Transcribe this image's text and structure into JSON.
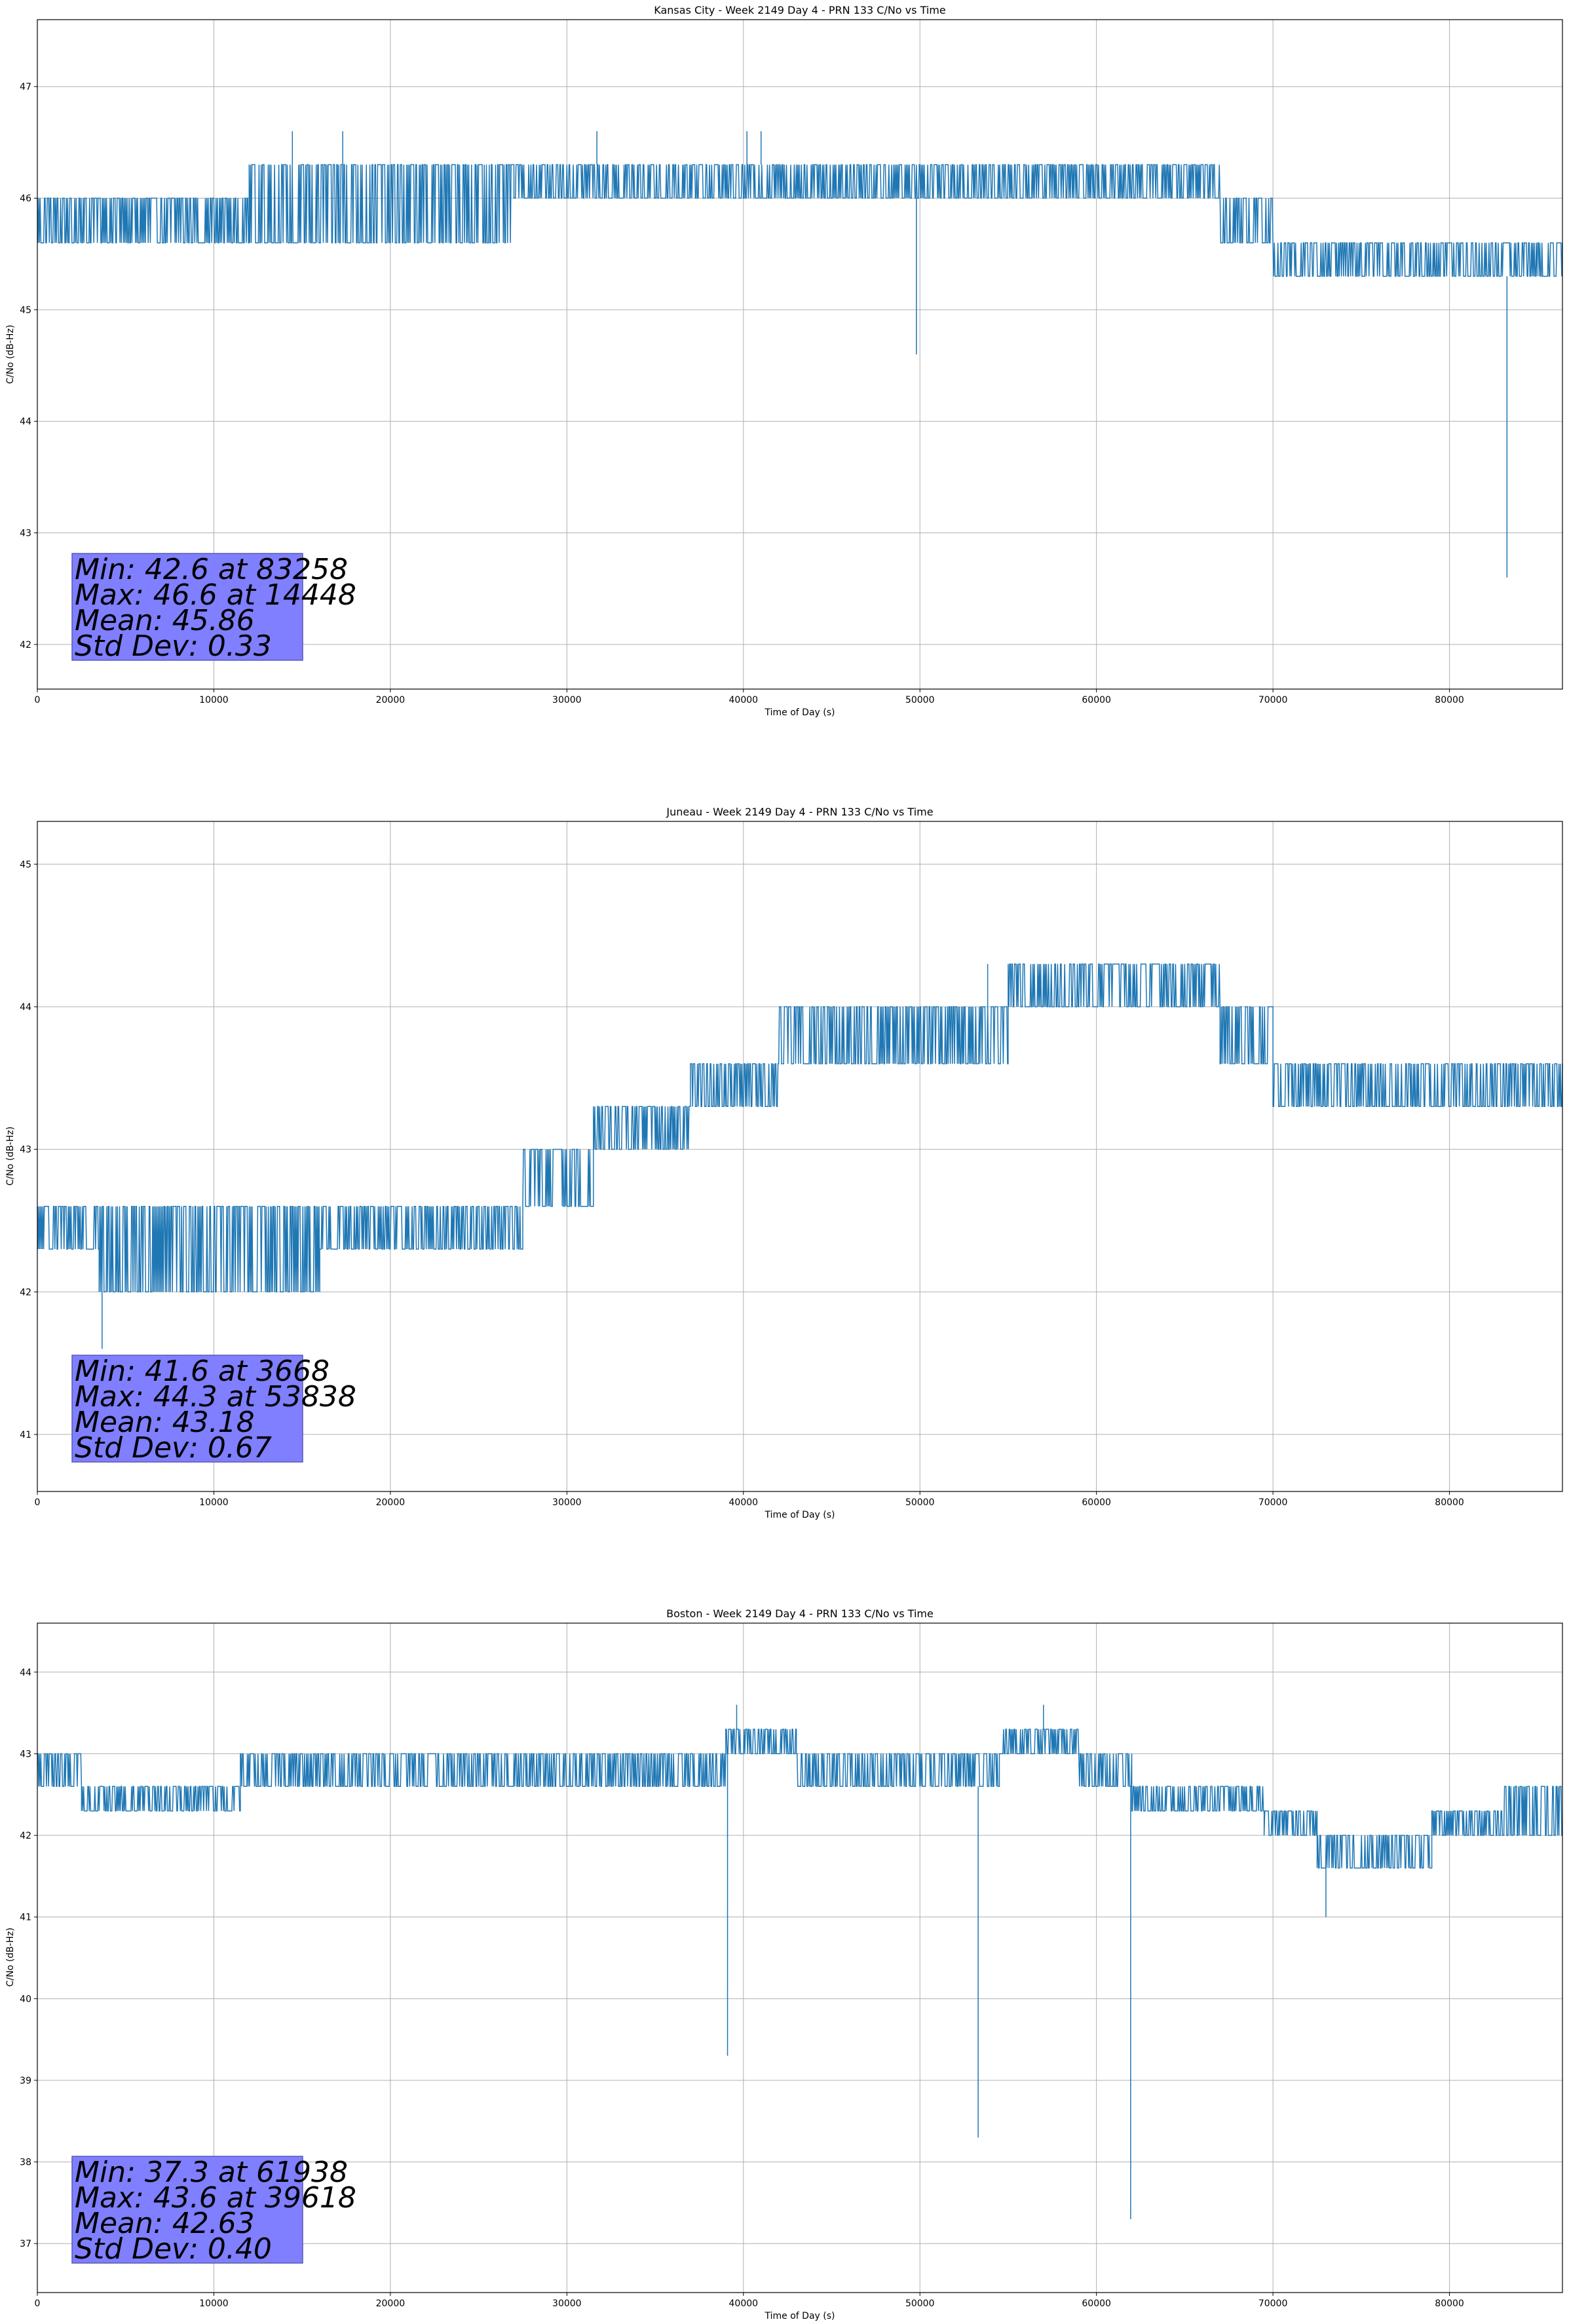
{
  "chart_data": [
    {
      "type": "line",
      "title": "Kansas City - Week 2149 Day 4 - PRN 133 C/No vs Time",
      "xlabel": "Time of Day (s)",
      "ylabel": "C/No (dB-Hz)",
      "xlim": [
        0,
        86400
      ],
      "ylim": [
        41.6,
        47.6
      ],
      "xticks": [
        0,
        10000,
        20000,
        30000,
        40000,
        50000,
        60000,
        70000,
        80000
      ],
      "yticks": [
        42,
        43,
        44,
        45,
        46,
        47
      ],
      "grid": true,
      "line_color": "#1f77b4",
      "series": [
        {
          "levels": [
            {
              "x0": 0,
              "x1": 12000,
              "ylo": 45.6,
              "yhi": 46.0
            },
            {
              "x0": 12000,
              "x1": 27000,
              "ylo": 45.6,
              "yhi": 46.3
            },
            {
              "x0": 27000,
              "x1": 67000,
              "ylo": 46.0,
              "yhi": 46.3
            },
            {
              "x0": 67000,
              "x1": 70000,
              "ylo": 45.6,
              "yhi": 46.0
            },
            {
              "x0": 70000,
              "x1": 86400,
              "ylo": 45.3,
              "yhi": 45.6
            }
          ],
          "spikes": [
            {
              "x": 49800,
              "y": 44.6
            },
            {
              "x": 83258,
              "y": 42.6
            },
            {
              "x": 14448,
              "y": 46.6
            },
            {
              "x": 17300,
              "y": 46.6
            },
            {
              "x": 31700,
              "y": 46.6
            },
            {
              "x": 40200,
              "y": 46.6
            },
            {
              "x": 41000,
              "y": 46.6
            }
          ]
        }
      ],
      "stats": [
        "Min: 42.6 at 83258",
        "Max: 46.6 at 14448",
        "Mean: 45.86",
        "Std Dev: 0.33"
      ]
    },
    {
      "type": "line",
      "title": "Juneau - Week 2149 Day 4 - PRN 133 C/No vs Time",
      "xlabel": "Time of Day (s)",
      "ylabel": "C/No (dB-Hz)",
      "xlim": [
        0,
        86400
      ],
      "ylim": [
        40.6,
        45.3
      ],
      "xticks": [
        0,
        10000,
        20000,
        30000,
        40000,
        50000,
        60000,
        70000,
        80000
      ],
      "yticks": [
        41,
        42,
        43,
        44,
        45
      ],
      "grid": true,
      "line_color": "#1f77b4",
      "series": [
        {
          "levels": [
            {
              "x0": 0,
              "x1": 3500,
              "ylo": 42.3,
              "yhi": 42.6
            },
            {
              "x0": 3500,
              "x1": 16000,
              "ylo": 42.0,
              "yhi": 42.6
            },
            {
              "x0": 16000,
              "x1": 27500,
              "ylo": 42.3,
              "yhi": 42.6
            },
            {
              "x0": 27500,
              "x1": 31500,
              "ylo": 42.6,
              "yhi": 43.0
            },
            {
              "x0": 31500,
              "x1": 37000,
              "ylo": 43.0,
              "yhi": 43.3
            },
            {
              "x0": 37000,
              "x1": 42000,
              "ylo": 43.3,
              "yhi": 43.6
            },
            {
              "x0": 42000,
              "x1": 55000,
              "ylo": 43.6,
              "yhi": 44.0
            },
            {
              "x0": 55000,
              "x1": 67000,
              "ylo": 44.0,
              "yhi": 44.3
            },
            {
              "x0": 67000,
              "x1": 70000,
              "ylo": 43.6,
              "yhi": 44.0
            },
            {
              "x0": 70000,
              "x1": 86400,
              "ylo": 43.3,
              "yhi": 43.6
            }
          ],
          "spikes": [
            {
              "x": 3668,
              "y": 41.6
            },
            {
              "x": 53838,
              "y": 44.3
            }
          ]
        }
      ],
      "stats": [
        "Min: 41.6 at 3668",
        "Max: 44.3 at 53838",
        "Mean: 43.18",
        "Std Dev: 0.67"
      ]
    },
    {
      "type": "line",
      "title": "Boston - Week 2149 Day 4 - PRN 133 C/No vs Time",
      "xlabel": "Time of Day (s)",
      "ylabel": "C/No (dB-Hz)",
      "xlim": [
        0,
        86400
      ],
      "ylim": [
        36.4,
        44.6
      ],
      "xticks": [
        0,
        10000,
        20000,
        30000,
        40000,
        50000,
        60000,
        70000,
        80000
      ],
      "yticks": [
        37,
        38,
        39,
        40,
        41,
        42,
        43,
        44
      ],
      "grid": true,
      "line_color": "#1f77b4",
      "series": [
        {
          "levels": [
            {
              "x0": 0,
              "x1": 2500,
              "ylo": 42.6,
              "yhi": 43.0
            },
            {
              "x0": 2500,
              "x1": 11500,
              "ylo": 42.3,
              "yhi": 42.6
            },
            {
              "x0": 11500,
              "x1": 39000,
              "ylo": 42.6,
              "yhi": 43.0
            },
            {
              "x0": 39000,
              "x1": 43000,
              "ylo": 43.0,
              "yhi": 43.3
            },
            {
              "x0": 43000,
              "x1": 54500,
              "ylo": 42.6,
              "yhi": 43.0
            },
            {
              "x0": 54500,
              "x1": 59000,
              "ylo": 43.0,
              "yhi": 43.3
            },
            {
              "x0": 59000,
              "x1": 62000,
              "ylo": 42.6,
              "yhi": 43.0
            },
            {
              "x0": 62000,
              "x1": 69500,
              "ylo": 42.3,
              "yhi": 42.6
            },
            {
              "x0": 69500,
              "x1": 72500,
              "ylo": 42.0,
              "yhi": 42.3
            },
            {
              "x0": 72500,
              "x1": 79000,
              "ylo": 41.6,
              "yhi": 42.0
            },
            {
              "x0": 79000,
              "x1": 83000,
              "ylo": 42.0,
              "yhi": 42.3
            },
            {
              "x0": 83000,
              "x1": 86400,
              "ylo": 42.0,
              "yhi": 42.6
            }
          ],
          "spikes": [
            {
              "x": 39100,
              "y": 39.3
            },
            {
              "x": 53300,
              "y": 38.3
            },
            {
              "x": 61938,
              "y": 37.3
            },
            {
              "x": 39618,
              "y": 43.6
            },
            {
              "x": 57000,
              "y": 43.6
            },
            {
              "x": 73000,
              "y": 41.0
            }
          ]
        }
      ],
      "stats": [
        "Min: 37.3 at 61938",
        "Max: 43.6 at 39618",
        "Mean: 42.63",
        "Std Dev: 0.40"
      ]
    }
  ]
}
